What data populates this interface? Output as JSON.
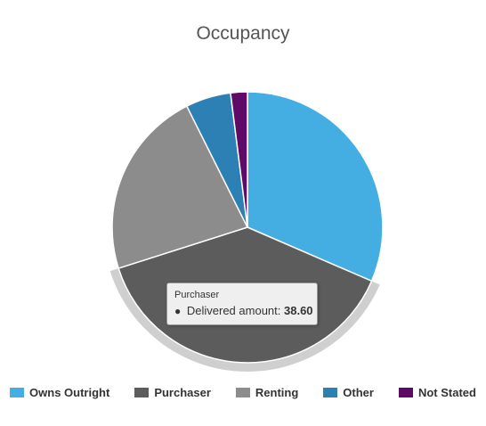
{
  "chart_data": {
    "type": "pie",
    "title": "Occupancy",
    "categories": [
      "Owns Outright",
      "Purchaser",
      "Renting",
      "Other",
      "Not Stated"
    ],
    "values": [
      31.5,
      38.6,
      22.5,
      5.4,
      2.0
    ],
    "colors": [
      "#44aee3",
      "#5c5c5c",
      "#8c8c8c",
      "#2d80b3",
      "#5f0a66"
    ],
    "legend_position": "bottom",
    "highlighted": "Purchaser"
  },
  "tooltip": {
    "title": "Purchaser",
    "marker": "●",
    "label": "Delivered amount:",
    "value": "38.60"
  }
}
